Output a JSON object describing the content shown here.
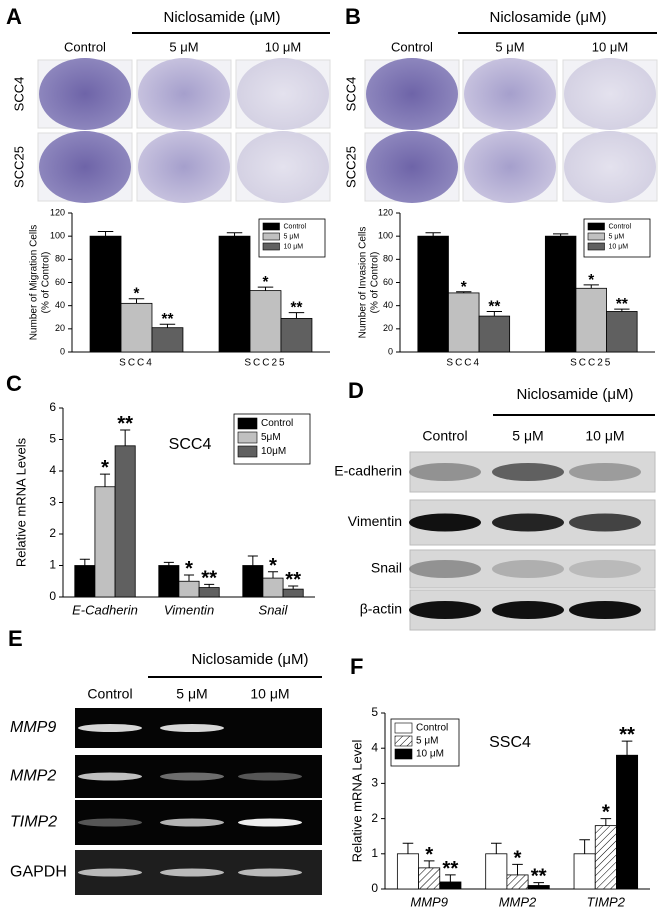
{
  "chart_data": [
    {
      "type": "bar",
      "panel_label": "A",
      "ylabel": [
        "Number of Migration Cells",
        "(% of Control)"
      ],
      "categories": [
        "SCC4",
        "SCC25"
      ],
      "series": [
        {
          "name": "Control",
          "color": "#000000",
          "values": [
            100,
            100
          ],
          "errors": [
            4,
            3
          ]
        },
        {
          "name": "5 μM",
          "color": "#c0c0c0",
          "values": [
            42,
            53
          ],
          "errors": [
            4,
            3
          ],
          "sig": [
            "*",
            "*"
          ]
        },
        {
          "name": "10 μM",
          "color": "#606060",
          "values": [
            21,
            29
          ],
          "errors": [
            3,
            5
          ],
          "sig": [
            "**",
            "**"
          ]
        }
      ],
      "ylim": [
        0,
        120
      ],
      "yticks": [
        0,
        20,
        40,
        60,
        80,
        100,
        120
      ],
      "legend": "upper right"
    },
    {
      "type": "bar",
      "panel_label": "B",
      "ylabel": [
        "Number of Invasion Cells",
        "(% of Control)"
      ],
      "categories": [
        "SCC4",
        "SCC25"
      ],
      "series": [
        {
          "name": "Control",
          "color": "#000000",
          "values": [
            100,
            100
          ],
          "errors": [
            3,
            2
          ]
        },
        {
          "name": "5 μM",
          "color": "#c0c0c0",
          "values": [
            51,
            55
          ],
          "errors": [
            1,
            3
          ],
          "sig": [
            "*",
            "*"
          ]
        },
        {
          "name": "10 μM",
          "color": "#606060",
          "values": [
            31,
            35
          ],
          "errors": [
            4,
            2
          ],
          "sig": [
            "**",
            "**"
          ]
        }
      ],
      "ylim": [
        0,
        120
      ],
      "yticks": [
        0,
        20,
        40,
        60,
        80,
        100,
        120
      ],
      "legend": "upper right"
    },
    {
      "type": "bar",
      "panel_label": "C",
      "title": "SCC4",
      "ylabel": [
        "Relative mRNA Levels"
      ],
      "categories": [
        "E-Cadherin",
        "Vimentin",
        "Snail"
      ],
      "italic_categories": true,
      "series": [
        {
          "name": "Control",
          "color": "#000000",
          "values": [
            1,
            1,
            1
          ],
          "errors": [
            0.2,
            0.1,
            0.3
          ]
        },
        {
          "name": "5μM",
          "color": "#c0c0c0",
          "values": [
            3.5,
            0.5,
            0.6
          ],
          "errors": [
            0.4,
            0.2,
            0.2
          ],
          "sig": [
            "*",
            "*",
            "*"
          ]
        },
        {
          "name": "10μM",
          "color": "#606060",
          "values": [
            4.8,
            0.3,
            0.25
          ],
          "errors": [
            0.5,
            0.1,
            0.1
          ],
          "sig": [
            "**",
            "**",
            "**"
          ]
        }
      ],
      "ylim": [
        0,
        6
      ],
      "yticks": [
        0,
        1,
        2,
        3,
        4,
        5,
        6
      ],
      "legend": "upper right"
    },
    {
      "type": "bar",
      "panel_label": "F",
      "title": "SSC4",
      "ylabel": [
        "Relative mRNA Level"
      ],
      "categories": [
        "MMP9",
        "MMP2",
        "TIMP2"
      ],
      "italic_categories": true,
      "series": [
        {
          "name": "Control",
          "color": "#ffffff",
          "values": [
            1,
            1,
            1
          ],
          "errors": [
            0.3,
            0.3,
            0.4
          ]
        },
        {
          "name": "5 μM",
          "color": "#ffffff",
          "hatch": true,
          "values": [
            0.6,
            0.4,
            1.8
          ],
          "errors": [
            0.2,
            0.3,
            0.2
          ],
          "sig": [
            "*",
            "*",
            "*"
          ]
        },
        {
          "name": "10 μM",
          "color": "#000000",
          "values": [
            0.2,
            0.1,
            3.8
          ],
          "errors": [
            0.2,
            0.08,
            0.4
          ],
          "sig": [
            "**",
            "**",
            "**"
          ]
        }
      ],
      "ylim": [
        0,
        5
      ],
      "yticks": [
        0,
        1,
        2,
        3,
        4,
        5
      ],
      "legend": "upper left"
    }
  ],
  "panels": {
    "A": {
      "letter": "A",
      "header": "Niclosamide (μM)",
      "columns": [
        "Control",
        "5 μM",
        "10 μM"
      ],
      "rows": [
        "SCC4",
        "SCC25"
      ]
    },
    "B": {
      "letter": "B",
      "header": "Niclosamide (μM)",
      "columns": [
        "Control",
        "5 μM",
        "10 μM"
      ],
      "rows": [
        "SCC4",
        "SCC25"
      ]
    },
    "D": {
      "letter": "D",
      "header": "Niclosamide (μM)",
      "columns": [
        "Control",
        "5 μM",
        "10 μM"
      ],
      "rows": [
        "E-cadherin",
        "Vimentin",
        "Snail",
        "β-actin"
      ]
    },
    "E": {
      "letter": "E",
      "header": "Niclosamide (μM)",
      "columns": [
        "Control",
        "5 μM",
        "10 μM"
      ],
      "rows": [
        "MMP9",
        "MMP2",
        "TIMP2",
        "GAPDH"
      ]
    }
  }
}
